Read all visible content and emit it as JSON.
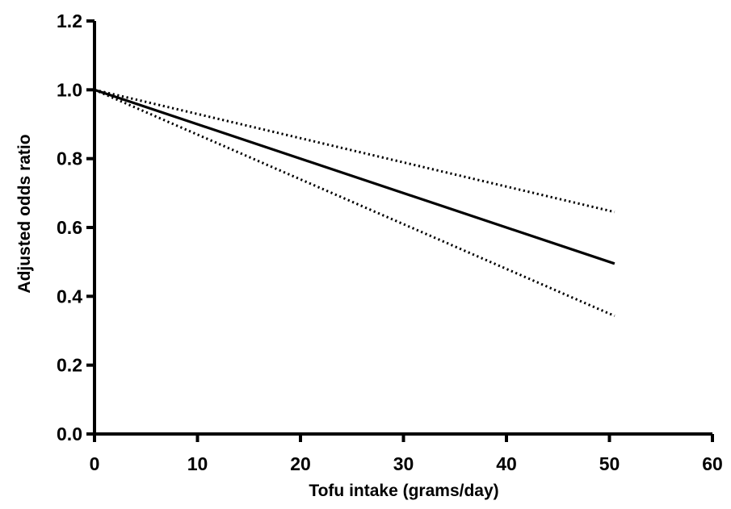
{
  "chart_data": {
    "type": "line",
    "title": "",
    "xlabel": "Tofu intake (grams/day)",
    "ylabel": "Adjusted odds ratio",
    "xlim": [
      0,
      60
    ],
    "ylim": [
      0.0,
      1.2
    ],
    "x_ticks": [
      "0",
      "10",
      "20",
      "30",
      "40",
      "50",
      "60"
    ],
    "y_ticks": [
      "0.0",
      "0.2",
      "0.4",
      "0.6",
      "0.8",
      "1.0",
      "1.2"
    ],
    "grid": false,
    "legend": "none",
    "series": [
      {
        "style": "solid",
        "x": [
          0,
          50.5
        ],
        "y": [
          1.0,
          0.495
        ]
      },
      {
        "style": "dotted",
        "x": [
          0,
          50.5
        ],
        "y": [
          1.0,
          0.645
        ]
      },
      {
        "style": "dotted",
        "x": [
          0,
          50.5
        ],
        "y": [
          1.0,
          0.343
        ]
      }
    ]
  }
}
